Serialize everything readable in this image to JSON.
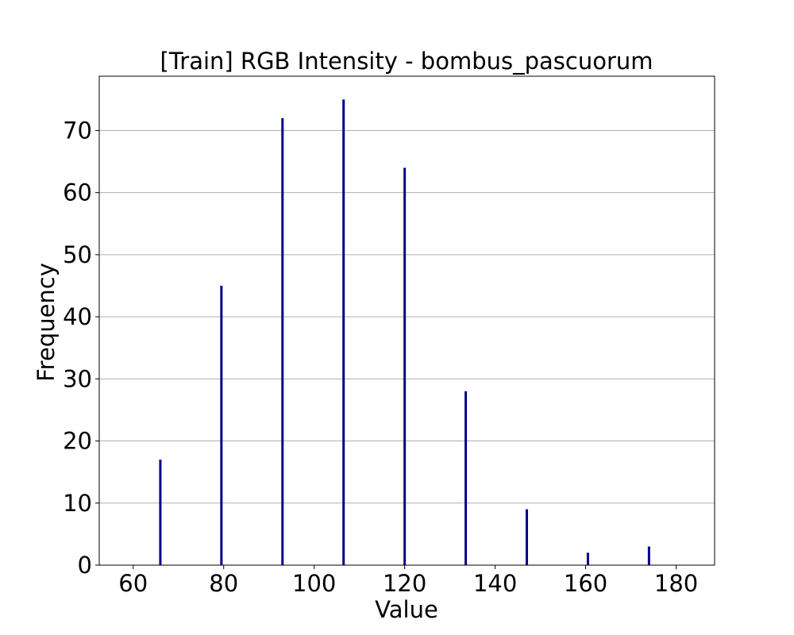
{
  "chart_data": {
    "type": "bar",
    "title": "[Train] RGB Intensity - bombus_pascuorum",
    "xlabel": "Value",
    "ylabel": "Frequency",
    "xlim": [
      52.5,
      188.5
    ],
    "ylim": [
      0,
      78.75
    ],
    "xticks": [
      60,
      80,
      100,
      120,
      140,
      160,
      180
    ],
    "yticks": [
      0,
      10,
      20,
      30,
      40,
      50,
      60,
      70
    ],
    "grid": "horizontal",
    "bar_color": "#00008b",
    "bars": [
      {
        "x": 66.0,
        "value": 17
      },
      {
        "x": 79.5,
        "value": 45
      },
      {
        "x": 93.0,
        "value": 72
      },
      {
        "x": 106.5,
        "value": 75
      },
      {
        "x": 120.0,
        "value": 64
      },
      {
        "x": 133.5,
        "value": 28
      },
      {
        "x": 147.0,
        "value": 9
      },
      {
        "x": 160.5,
        "value": 2
      },
      {
        "x": 174.0,
        "value": 3
      }
    ]
  }
}
